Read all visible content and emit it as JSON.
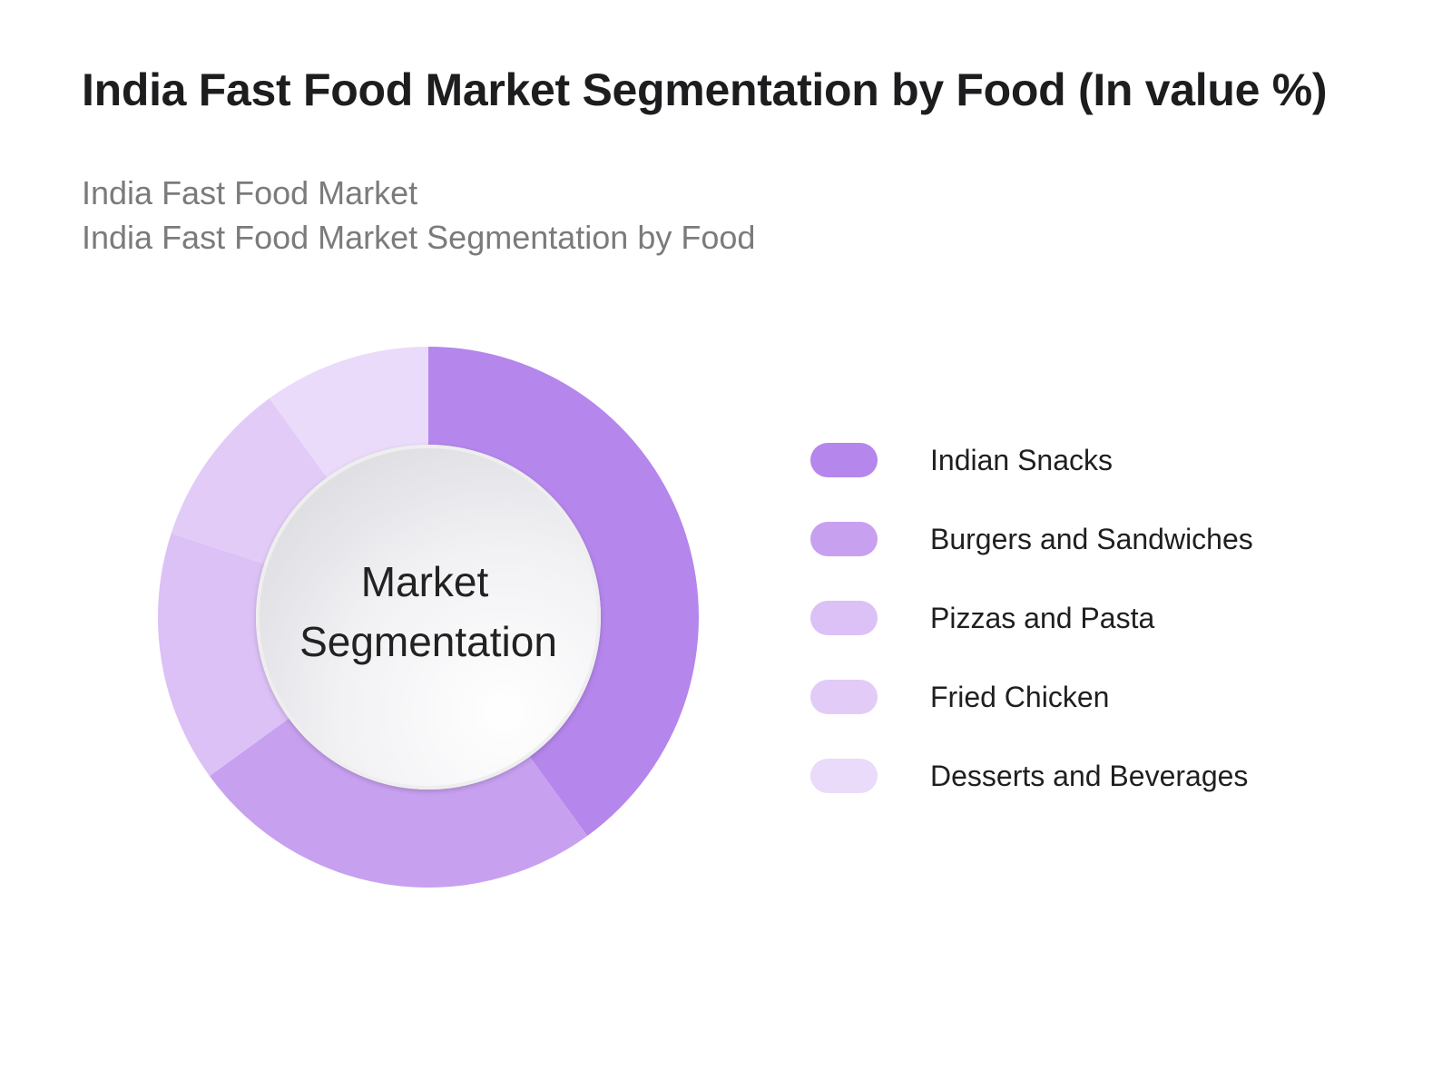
{
  "title": "India Fast Food Market Segmentation by Food (In value %)",
  "subtitles": [
    "India Fast Food Market",
    "India Fast Food Market Segmentation by Food"
  ],
  "center_label": [
    "Market",
    "Segmentation"
  ],
  "chart_data": {
    "type": "pie",
    "title": "India Fast Food Market Segmentation by Food (In value %)",
    "categories": [
      "Indian Snacks",
      "Burgers and Sandwiches",
      "Pizzas and Pasta",
      "Fried Chicken",
      "Desserts and Beverages"
    ],
    "values": [
      40,
      25,
      15,
      10,
      10
    ],
    "colors": [
      "#b586ec",
      "#c8a0f0",
      "#dbc1f5",
      "#e2ccf7",
      "#eadbfa"
    ],
    "legend_position": "right"
  }
}
